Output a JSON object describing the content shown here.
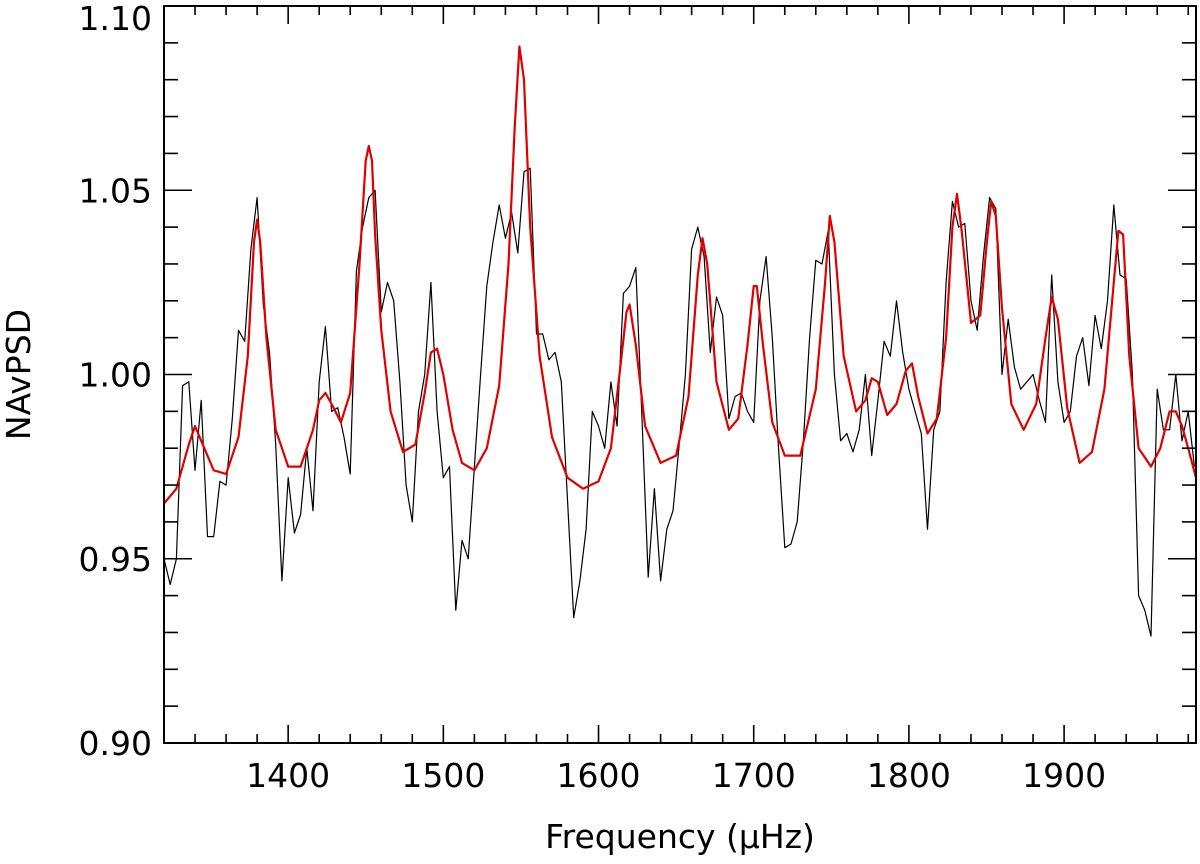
{
  "chart_data": {
    "type": "line",
    "xlabel": "Frequency (μHz)",
    "ylabel": "NAvPSD",
    "xlim": [
      1320,
      1985
    ],
    "ylim": [
      0.9,
      1.1
    ],
    "x_ticks": [
      1400,
      1500,
      1600,
      1700,
      1800,
      1900
    ],
    "x_tick_labels": [
      "1400",
      "1500",
      "1600",
      "1700",
      "1800",
      "1900"
    ],
    "x_minor_step": 20,
    "y_ticks": [
      0.9,
      0.95,
      1.0,
      1.05,
      1.1
    ],
    "y_tick_labels": [
      "0.90",
      "0.95",
      "1.00",
      "1.05",
      "1.10"
    ],
    "y_minor_step": 0.01,
    "grid": false,
    "colors": {
      "data": "#000000",
      "fit": "#e00000",
      "axes": "#000000"
    },
    "series": [
      {
        "id": "observed",
        "color": "#000000",
        "x": [
          1320,
          1324,
          1328,
          1332,
          1336,
          1340,
          1344,
          1348,
          1352,
          1356,
          1360,
          1364,
          1368,
          1372,
          1376,
          1380,
          1384,
          1388,
          1392,
          1396,
          1400,
          1404,
          1408,
          1412,
          1416,
          1420,
          1424,
          1428,
          1432,
          1436,
          1440,
          1444,
          1448,
          1452,
          1456,
          1460,
          1464,
          1468,
          1472,
          1476,
          1480,
          1484,
          1488,
          1492,
          1496,
          1500,
          1504,
          1508,
          1512,
          1516,
          1520,
          1524,
          1528,
          1532,
          1536,
          1540,
          1544,
          1548,
          1552,
          1556,
          1560,
          1564,
          1568,
          1572,
          1576,
          1580,
          1584,
          1588,
          1592,
          1596,
          1600,
          1604,
          1608,
          1612,
          1616,
          1620,
          1624,
          1628,
          1632,
          1636,
          1640,
          1644,
          1648,
          1652,
          1656,
          1660,
          1664,
          1668,
          1672,
          1676,
          1680,
          1684,
          1688,
          1692,
          1696,
          1700,
          1704,
          1708,
          1712,
          1716,
          1720,
          1724,
          1728,
          1732,
          1736,
          1740,
          1744,
          1748,
          1752,
          1756,
          1760,
          1764,
          1768,
          1772,
          1776,
          1780,
          1784,
          1788,
          1792,
          1796,
          1800,
          1804,
          1808,
          1812,
          1816,
          1820,
          1824,
          1828,
          1832,
          1836,
          1840,
          1844,
          1848,
          1852,
          1856,
          1860,
          1864,
          1868,
          1872,
          1876,
          1880,
          1884,
          1888,
          1892,
          1896,
          1900,
          1904,
          1908,
          1912,
          1916,
          1920,
          1924,
          1928,
          1932,
          1936,
          1940,
          1944,
          1948,
          1952,
          1956,
          1960,
          1964,
          1968,
          1972,
          1976,
          1980,
          1984
        ],
        "y": [
          0.95,
          0.943,
          0.95,
          0.997,
          0.998,
          0.974,
          0.993,
          0.956,
          0.956,
          0.971,
          0.97,
          0.988,
          1.012,
          1.009,
          1.034,
          1.048,
          1.019,
          1.006,
          0.981,
          0.944,
          0.972,
          0.957,
          0.962,
          0.98,
          0.963,
          0.998,
          1.013,
          0.99,
          0.991,
          0.983,
          0.973,
          1.028,
          1.04,
          1.048,
          1.05,
          1.017,
          1.025,
          1.02,
          0.998,
          0.97,
          0.96,
          0.99,
          1.0,
          1.025,
          0.99,
          0.972,
          0.975,
          0.936,
          0.955,
          0.95,
          0.975,
          1.0,
          1.024,
          1.036,
          1.046,
          1.037,
          1.044,
          1.033,
          1.055,
          1.056,
          1.011,
          1.011,
          1.004,
          1.006,
          0.998,
          0.966,
          0.934,
          0.944,
          0.958,
          0.99,
          0.986,
          0.98,
          0.998,
          0.986,
          1.022,
          1.024,
          1.029,
          0.988,
          0.945,
          0.969,
          0.944,
          0.958,
          0.963,
          0.981,
          1.0,
          1.034,
          1.04,
          1.032,
          1.006,
          1.021,
          1.016,
          0.988,
          0.994,
          0.995,
          0.99,
          0.987,
          1.02,
          1.032,
          1.01,
          0.98,
          0.953,
          0.954,
          0.96,
          0.982,
          1.01,
          1.031,
          1.03,
          1.039,
          1.0,
          0.982,
          0.984,
          0.979,
          0.985,
          1.0,
          0.978,
          0.993,
          1.009,
          1.005,
          1.02,
          1.006,
          0.996,
          0.99,
          0.984,
          0.958,
          0.985,
          0.99,
          1.025,
          1.047,
          1.04,
          1.041,
          1.02,
          1.012,
          1.032,
          1.048,
          1.045,
          1.0,
          1.015,
          1.002,
          0.996,
          0.998,
          1.0,
          0.993,
          0.987,
          1.027,
          0.998,
          0.987,
          0.99,
          1.005,
          1.01,
          0.997,
          1.016,
          1.007,
          1.02,
          1.046,
          1.027,
          1.026,
          1.0,
          0.94,
          0.936,
          0.929,
          0.996,
          0.985,
          0.985,
          1.0,
          0.982,
          0.99,
          0.975
        ]
      },
      {
        "id": "fit",
        "color": "#e00000",
        "x": [
          1320,
          1328,
          1336,
          1340,
          1344,
          1352,
          1360,
          1368,
          1374,
          1378,
          1380,
          1382,
          1386,
          1392,
          1400,
          1408,
          1416,
          1420,
          1424,
          1428,
          1434,
          1440,
          1446,
          1450,
          1452,
          1454,
          1456,
          1460,
          1466,
          1474,
          1482,
          1488,
          1492,
          1496,
          1500,
          1506,
          1512,
          1520,
          1528,
          1536,
          1542,
          1546,
          1549,
          1552,
          1556,
          1562,
          1570,
          1580,
          1590,
          1600,
          1608,
          1614,
          1618,
          1620,
          1624,
          1630,
          1640,
          1650,
          1658,
          1664,
          1667,
          1670,
          1676,
          1684,
          1690,
          1696,
          1700,
          1702,
          1706,
          1712,
          1720,
          1730,
          1740,
          1746,
          1749,
          1752,
          1758,
          1766,
          1772,
          1776,
          1780,
          1786,
          1792,
          1798,
          1802,
          1806,
          1812,
          1818,
          1824,
          1828,
          1831,
          1834,
          1840,
          1846,
          1850,
          1853,
          1856,
          1860,
          1866,
          1874,
          1882,
          1888,
          1892,
          1896,
          1902,
          1910,
          1918,
          1926,
          1932,
          1935,
          1938,
          1942,
          1948,
          1956,
          1962,
          1968,
          1972,
          1976,
          1980,
          1985
        ],
        "y": [
          0.965,
          0.969,
          0.981,
          0.986,
          0.982,
          0.974,
          0.973,
          0.983,
          1.005,
          1.036,
          1.042,
          1.036,
          1.01,
          0.985,
          0.975,
          0.975,
          0.985,
          0.993,
          0.995,
          0.992,
          0.987,
          0.995,
          1.03,
          1.058,
          1.062,
          1.058,
          1.038,
          1.012,
          0.99,
          0.979,
          0.981,
          0.995,
          1.006,
          1.007,
          1.0,
          0.985,
          0.976,
          0.974,
          0.98,
          0.997,
          1.03,
          1.067,
          1.089,
          1.08,
          1.04,
          1.005,
          0.983,
          0.972,
          0.969,
          0.971,
          0.98,
          1.002,
          1.017,
          1.019,
          1.008,
          0.986,
          0.976,
          0.978,
          0.994,
          1.027,
          1.037,
          1.03,
          0.998,
          0.985,
          0.988,
          1.008,
          1.024,
          1.024,
          1.008,
          0.987,
          0.978,
          0.978,
          0.996,
          1.025,
          1.043,
          1.036,
          1.005,
          0.99,
          0.993,
          0.999,
          0.998,
          0.989,
          0.992,
          1.001,
          1.003,
          0.994,
          0.984,
          0.988,
          1.01,
          1.04,
          1.049,
          1.039,
          1.014,
          1.016,
          1.035,
          1.047,
          1.043,
          1.018,
          0.992,
          0.985,
          0.992,
          1.01,
          1.021,
          1.015,
          0.991,
          0.976,
          0.979,
          0.996,
          1.025,
          1.039,
          1.038,
          1.005,
          0.98,
          0.975,
          0.98,
          0.99,
          0.99,
          0.986,
          0.98,
          0.972
        ]
      }
    ]
  }
}
